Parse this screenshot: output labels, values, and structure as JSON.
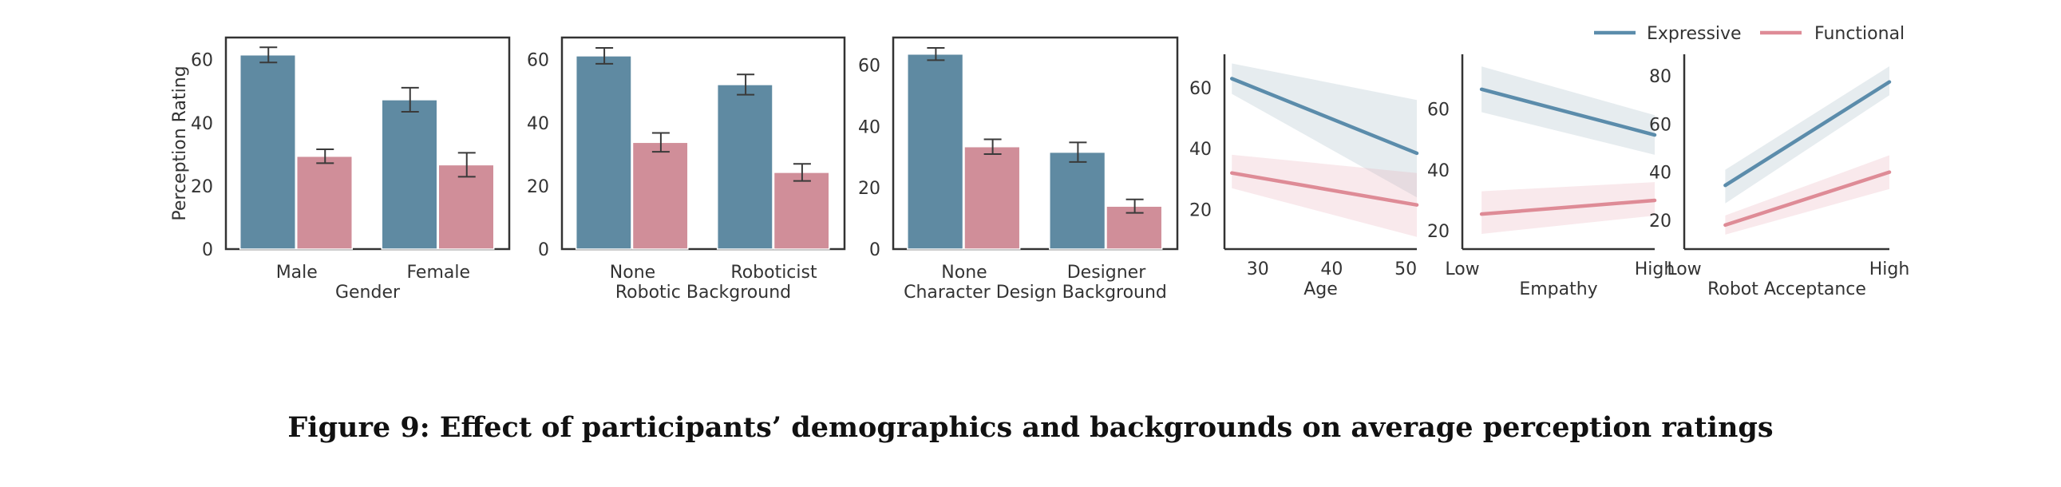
{
  "colors": {
    "expressive": "#5f8aa2",
    "functional": "#d08e99",
    "expressive_line": "#5b8cab",
    "functional_line": "#de8b96",
    "axis": "#333333"
  },
  "legend": {
    "items": [
      {
        "name": "Expressive",
        "color": "#5b8cab"
      },
      {
        "name": "Functional",
        "color": "#de8b96"
      }
    ]
  },
  "caption": "Figure 9: Effect of participants’ demographics and backgrounds on average perception ratings",
  "chart_data": [
    {
      "type": "bar",
      "title": "",
      "xlabel": "Gender",
      "ylabel": "Perception Rating",
      "categories": [
        "Male",
        "Female"
      ],
      "ylim": [
        0,
        67
      ],
      "yticks": [
        0,
        20,
        40,
        60
      ],
      "series": [
        {
          "name": "Expressive",
          "values": [
            61.5,
            47.3
          ],
          "err": [
            2.4,
            3.8
          ]
        },
        {
          "name": "Functional",
          "values": [
            29.4,
            26.7
          ],
          "err": [
            2.2,
            3.8
          ]
        }
      ]
    },
    {
      "type": "bar",
      "title": "",
      "xlabel": "Robotic Background",
      "ylabel": "",
      "categories": [
        "None",
        "Roboticist"
      ],
      "ylim": [
        0,
        67
      ],
      "yticks": [
        0,
        20,
        40,
        60
      ],
      "series": [
        {
          "name": "Expressive",
          "values": [
            61.2,
            52.1
          ],
          "err": [
            2.5,
            3.2
          ]
        },
        {
          "name": "Functional",
          "values": [
            33.8,
            24.3
          ],
          "err": [
            3.0,
            2.7
          ]
        }
      ]
    },
    {
      "type": "bar",
      "title": "",
      "xlabel": "Character Design Background",
      "ylabel": "",
      "categories": [
        "None",
        "Designer"
      ],
      "ylim": [
        0,
        69
      ],
      "yticks": [
        0,
        20,
        40,
        60
      ],
      "series": [
        {
          "name": "Expressive",
          "values": [
            63.6,
            31.6
          ],
          "err": [
            2.0,
            3.2
          ]
        },
        {
          "name": "Functional",
          "values": [
            33.4,
            14.0
          ],
          "err": [
            2.4,
            2.2
          ]
        }
      ]
    },
    {
      "type": "line",
      "title": "",
      "xlabel": "Age",
      "ylabel": "",
      "xlim": [
        25.5,
        51.5
      ],
      "ylim": [
        7,
        71
      ],
      "xticks": [
        30,
        40,
        50
      ],
      "xticklabels": [
        "30",
        "40",
        "50"
      ],
      "yticks": [
        20,
        40,
        60
      ],
      "series": [
        {
          "name": "Expressive",
          "x": [
            26.5,
            51.5
          ],
          "y": [
            63.0,
            38.5
          ],
          "lo": [
            58.0,
            24.0
          ],
          "hi": [
            68.0,
            56.0
          ]
        },
        {
          "name": "Functional",
          "x": [
            26.5,
            51.5
          ],
          "y": [
            32.0,
            21.5
          ],
          "lo": [
            27.0,
            11.0
          ],
          "hi": [
            38.0,
            32.0
          ]
        }
      ]
    },
    {
      "type": "line",
      "title": "",
      "xlabel": "Empathy",
      "ylabel": "",
      "xlim": [
        0,
        1
      ],
      "ylim": [
        14,
        78
      ],
      "xticks": [
        0,
        1
      ],
      "xticklabels": [
        "Low",
        "High"
      ],
      "yticks": [
        20,
        40,
        60
      ],
      "series": [
        {
          "name": "Expressive",
          "x": [
            0.1,
            1.0
          ],
          "y": [
            66.5,
            51.5
          ],
          "lo": [
            59.0,
            45.0
          ],
          "hi": [
            74.0,
            58.0
          ]
        },
        {
          "name": "Functional",
          "x": [
            0.1,
            1.0
          ],
          "y": [
            25.5,
            30.0
          ],
          "lo": [
            19.0,
            25.0
          ],
          "hi": [
            33.0,
            36.0
          ]
        }
      ]
    },
    {
      "type": "line",
      "title": "",
      "xlabel": "Robot Acceptance",
      "ylabel": "",
      "xlim": [
        0,
        1
      ],
      "ylim": [
        8,
        89
      ],
      "xticks": [
        0,
        1
      ],
      "xticklabels": [
        "Low",
        "High"
      ],
      "yticks": [
        20,
        40,
        60,
        80
      ],
      "series": [
        {
          "name": "Expressive",
          "x": [
            0.2,
            1.0
          ],
          "y": [
            34.5,
            77.5
          ],
          "lo": [
            27.0,
            72.0
          ],
          "hi": [
            41.0,
            84.0
          ]
        },
        {
          "name": "Functional",
          "x": [
            0.2,
            1.0
          ],
          "y": [
            18.0,
            40.0
          ],
          "lo": [
            14.0,
            33.0
          ],
          "hi": [
            22.0,
            47.0
          ]
        }
      ]
    }
  ]
}
